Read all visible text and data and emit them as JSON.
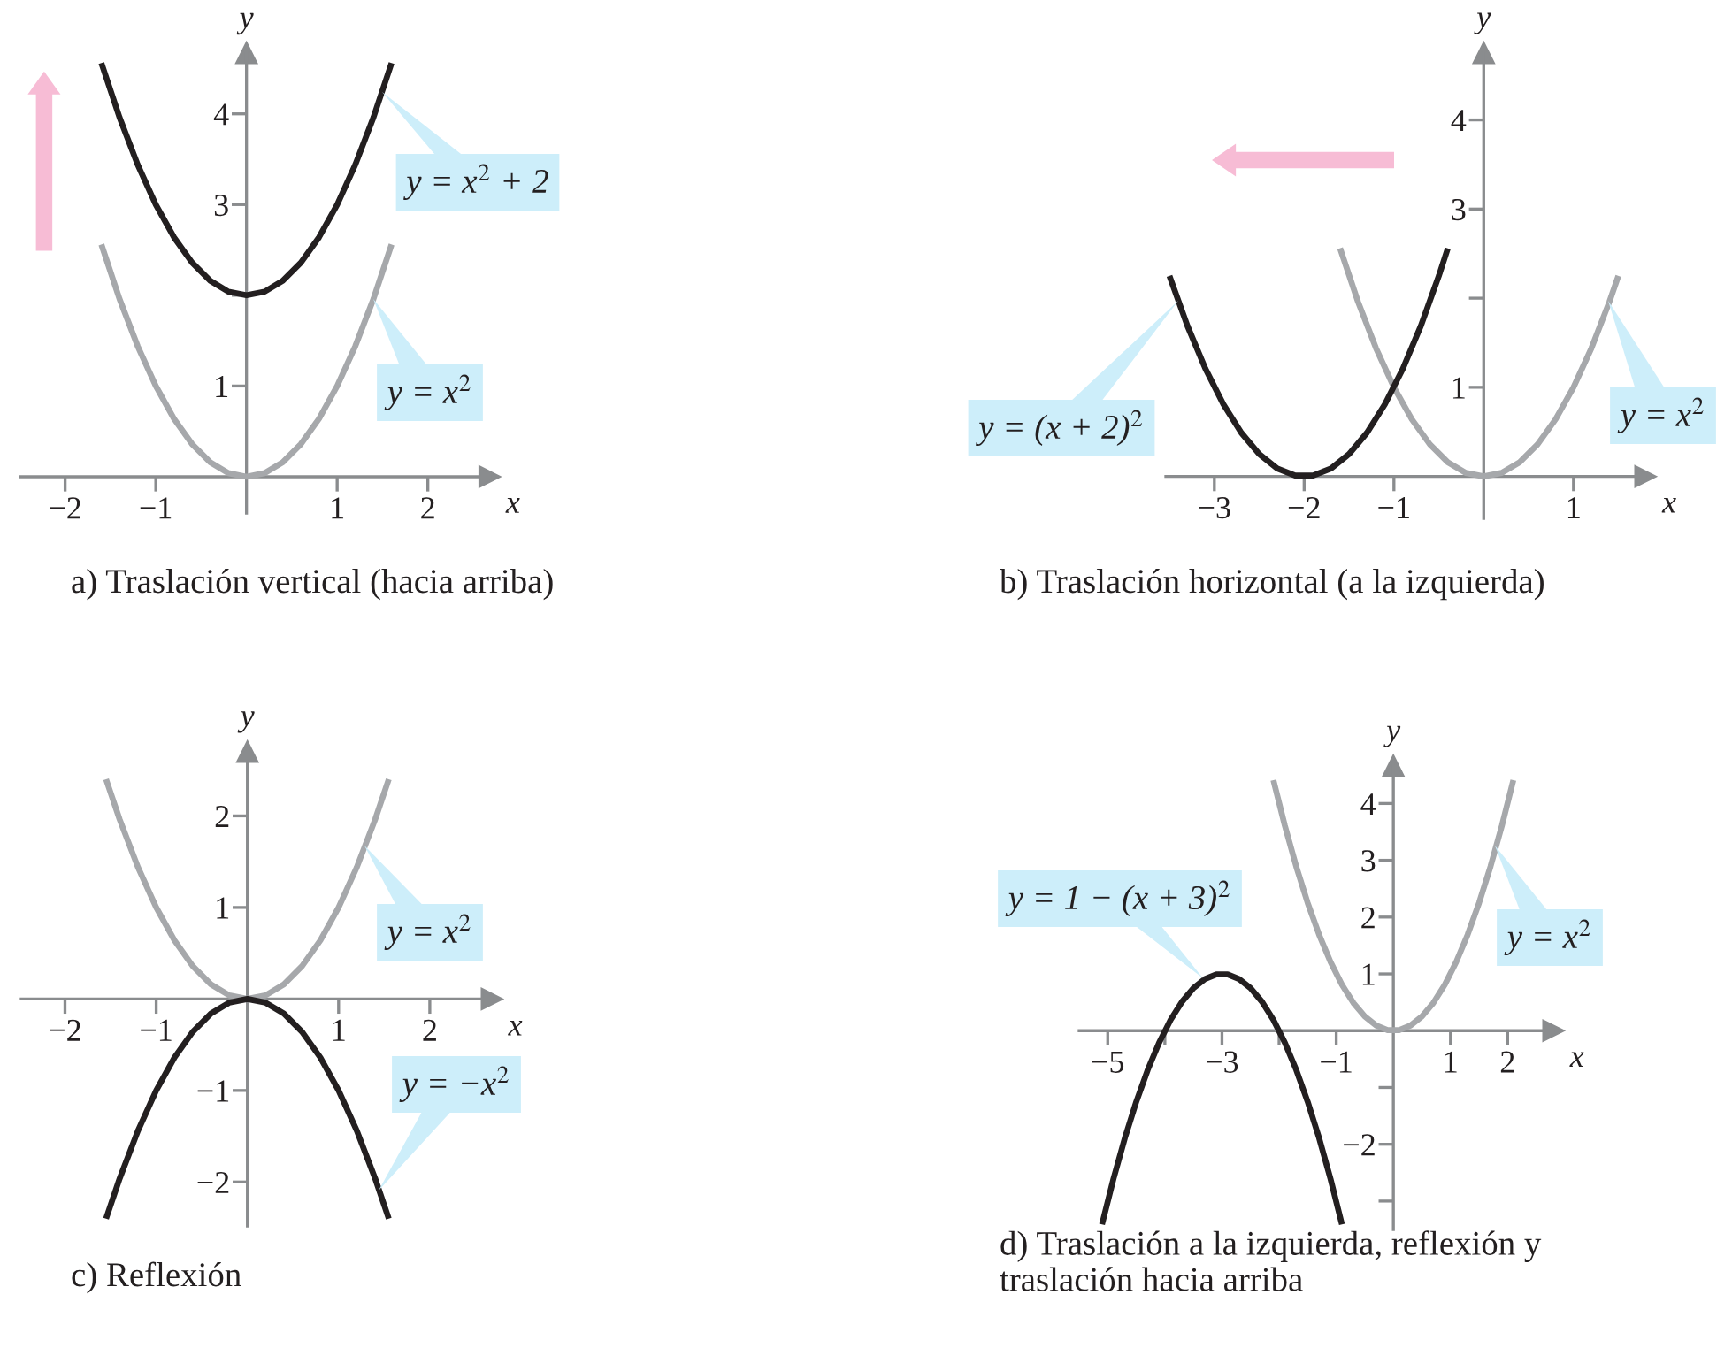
{
  "chart_data": [
    {
      "type": "line",
      "title": "a) Traslación vertical (hacia arriba)",
      "xlabel": "x",
      "ylabel": "y",
      "xlim": [
        -2.49,
        2.68
      ],
      "ylim": [
        -0.4,
        4.67
      ],
      "xticks": [
        -2,
        -1,
        1,
        2
      ],
      "yticks": [
        1,
        {
          "value": 2,
          "label": null
        },
        3,
        4
      ],
      "series": [
        {
          "color": "#a6a8ab",
          "x": [
            -1.6,
            -1.4,
            -1.2,
            -1,
            -0.8,
            -0.6,
            -0.4,
            -0.2,
            0,
            0.2,
            0.4,
            0.6,
            0.8,
            1,
            1.2,
            1.4,
            1.6
          ],
          "values": [
            2.56,
            1.96,
            1.44,
            1,
            0.64,
            0.36,
            0.16,
            0.04,
            0,
            0.04,
            0.16,
            0.36,
            0.64,
            1,
            1.44,
            1.96,
            2.56
          ]
        },
        {
          "color": "#231f20",
          "x": [
            -1.6,
            -1.4,
            -1.2,
            -1,
            -0.8,
            -0.6,
            -0.4,
            -0.2,
            0,
            0.2,
            0.4,
            0.6,
            0.8,
            1,
            1.2,
            1.4,
            1.6
          ],
          "values": [
            4.56,
            3.96,
            3.44,
            3,
            2.64,
            2.36,
            2.16,
            2.04,
            2,
            2.04,
            2.16,
            2.36,
            2.64,
            3,
            3.44,
            3.96,
            4.56
          ]
        }
      ],
      "annotations": [
        "y = x$^{2}$ + 2",
        "y = x$^{2}$"
      ]
    },
    {
      "type": "line",
      "title": "b) Traslación horizontal (a la izquierda)",
      "xlabel": "x",
      "ylabel": "y",
      "xlim": [
        -3.54,
        1.8
      ],
      "ylim": [
        -0.47,
        4.75
      ],
      "xticks": [
        -3,
        -2,
        -1,
        1
      ],
      "yticks": [
        1,
        {
          "value": 2,
          "label": null
        },
        3,
        4
      ],
      "series": [
        {
          "color": "#a6a8ab",
          "x": [
            -1.6,
            -1.4,
            -1.2,
            -1,
            -0.8,
            -0.6,
            -0.4,
            -0.2,
            0,
            0.2,
            0.4,
            0.6,
            0.8,
            1,
            1.2,
            1.4,
            1.5
          ],
          "values": [
            2.56,
            1.96,
            1.44,
            1,
            0.64,
            0.36,
            0.16,
            0.04,
            0,
            0.04,
            0.16,
            0.36,
            0.64,
            1,
            1.44,
            1.96,
            2.25
          ]
        },
        {
          "color": "#231f20",
          "x": [
            -3.5,
            -3.3,
            -3.1,
            -2.9,
            -2.7,
            -2.5,
            -2.3,
            -2.1,
            -1.9,
            -1.7,
            -1.5,
            -1.3,
            -1.1,
            -0.9,
            -0.7,
            -0.5,
            -0.4
          ],
          "values": [
            2.25,
            1.69,
            1.21,
            0.81,
            0.49,
            0.25,
            0.09,
            0.01,
            0.01,
            0.09,
            0.25,
            0.49,
            0.81,
            1.21,
            1.69,
            2.25,
            2.56
          ]
        }
      ],
      "annotations": [
        "y = (x + 2)$^{2}$",
        "y = x$^{2}$"
      ]
    },
    {
      "type": "line",
      "title": "c) Reflexión",
      "xlabel": "x",
      "ylabel": "y",
      "xlim": [
        -2.48,
        2.68
      ],
      "ylim": [
        -2.48,
        2.7
      ],
      "xticks": [
        -2,
        -1,
        1,
        2
      ],
      "yticks": [
        -2,
        -1,
        1,
        2
      ],
      "series": [
        {
          "color": "#a6a8ab",
          "x": [
            -1.55,
            -1.4,
            -1.2,
            -1,
            -0.8,
            -0.6,
            -0.4,
            -0.2,
            0,
            0.2,
            0.4,
            0.6,
            0.8,
            1,
            1.2,
            1.4,
            1.55
          ],
          "values": [
            2.4,
            1.96,
            1.44,
            1,
            0.64,
            0.36,
            0.16,
            0.04,
            0,
            0.04,
            0.16,
            0.36,
            0.64,
            1,
            1.44,
            1.96,
            2.4
          ]
        },
        {
          "color": "#231f20",
          "x": [
            -1.55,
            -1.4,
            -1.2,
            -1,
            -0.8,
            -0.6,
            -0.4,
            -0.2,
            0,
            0.2,
            0.4,
            0.6,
            0.8,
            1,
            1.2,
            1.4,
            1.55
          ],
          "values": [
            -2.4,
            -1.96,
            -1.44,
            -1,
            -0.64,
            -0.36,
            -0.16,
            -0.04,
            0,
            -0.04,
            -0.16,
            -0.36,
            -0.64,
            -1,
            -1.44,
            -1.96,
            -2.4
          ]
        }
      ],
      "annotations": [
        "y = x$^{2}$",
        "y = −x$^{2}$"
      ]
    },
    {
      "type": "line",
      "title": "d) Traslación a la izquierda, reflexión y\ntraslación hacia arriba",
      "xlabel": "x",
      "ylabel": "y",
      "xlim": [
        -5.5,
        2.8
      ],
      "ylim": [
        -3.5,
        4.66
      ],
      "xticks": [
        -5,
        {
          "value": -4,
          "label": null
        },
        -3,
        {
          "value": -2,
          "label": null
        },
        -1,
        1,
        2
      ],
      "yticks": [
        {
          "value": -3,
          "label": null
        },
        -2,
        {
          "value": -1,
          "label": null
        },
        1,
        2,
        3,
        4
      ],
      "series": [
        {
          "color": "#a6a8ab",
          "x": [
            -2.1,
            -1.9,
            -1.7,
            -1.5,
            -1.3,
            -1.1,
            -0.9,
            -0.7,
            -0.5,
            -0.3,
            -0.1,
            0.1,
            0.3,
            0.5,
            0.7,
            0.9,
            1.1,
            1.3,
            1.5,
            1.7,
            1.9,
            2.1
          ],
          "values": [
            4.41,
            3.61,
            2.89,
            2.25,
            1.69,
            1.21,
            0.81,
            0.49,
            0.25,
            0.09,
            0.01,
            0.01,
            0.09,
            0.25,
            0.49,
            0.81,
            1.21,
            1.69,
            2.25,
            2.89,
            3.61,
            4.41
          ]
        },
        {
          "color": "#231f20",
          "x": [
            -5.1,
            -4.9,
            -4.7,
            -4.5,
            -4.3,
            -4.1,
            -3.9,
            -3.7,
            -3.5,
            -3.3,
            -3.1,
            -2.9,
            -2.7,
            -2.5,
            -2.3,
            -2.1,
            -1.9,
            -1.7,
            -1.5,
            -1.3,
            -1.1,
            -0.9
          ],
          "values": [
            -3.41,
            -2.61,
            -1.89,
            -1.25,
            -0.69,
            -0.21,
            0.19,
            0.51,
            0.75,
            0.91,
            0.99,
            0.99,
            0.91,
            0.75,
            0.51,
            0.19,
            -0.21,
            -0.69,
            -1.25,
            -1.89,
            -2.61,
            -3.41
          ]
        }
      ],
      "annotations": [
        "y = 1 − (x + 3)$^{2}$",
        "y = x$^{2}$"
      ]
    }
  ]
}
